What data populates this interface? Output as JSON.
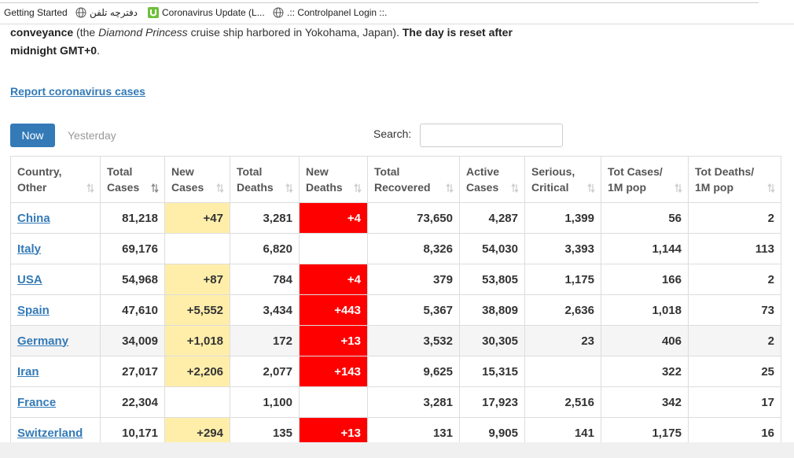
{
  "bookmarks": [
    "Getting Started",
    "دفترچه تلفن",
    "Coronavirus Update (L...",
    ".:: Controlpanel Login ::."
  ],
  "paragraph": [
    "conveyance",
    " (the ",
    "Diamond Princess",
    " cruise ship harbored in Yokohama, Japan). ",
    "The day is reset after midnight GMT+0",
    "."
  ],
  "report_link": "Report coronavirus cases",
  "tabs": [
    "Now",
    "Yesterday"
  ],
  "search_label": "Search:",
  "table": {
    "headers": [
      [
        "Country,",
        "Other"
      ],
      [
        "Total",
        "Cases"
      ],
      [
        "New",
        "Cases"
      ],
      [
        "Total",
        "Deaths"
      ],
      [
        "New",
        "Deaths"
      ],
      [
        "Total",
        "Recovered"
      ],
      [
        "Active",
        "Cases"
      ],
      [
        "Serious,",
        "Critical"
      ],
      [
        "Tot Cases/",
        "1M pop"
      ],
      [
        "Tot Deaths/",
        "1M pop"
      ]
    ],
    "rows": [
      [
        "China",
        "81,218",
        "+47",
        "3,281",
        "+4",
        "73,650",
        "4,287",
        "1,399",
        "56",
        "2"
      ],
      [
        "Italy",
        "69,176",
        null,
        "6,820",
        null,
        "8,326",
        "54,030",
        "3,393",
        "1,144",
        "113"
      ],
      [
        "USA",
        "54,968",
        "+87",
        "784",
        "+4",
        "379",
        "53,805",
        "1,175",
        "166",
        "2"
      ],
      [
        "Spain",
        "47,610",
        "+5,552",
        "3,434",
        "+443",
        "5,367",
        "38,809",
        "2,636",
        "1,018",
        "73"
      ],
      [
        "Germany",
        "34,009",
        "+1,018",
        "172",
        "+13",
        "3,532",
        "30,305",
        "23",
        "406",
        "2"
      ],
      [
        "Iran",
        "27,017",
        "+2,206",
        "2,077",
        "+143",
        "9,625",
        "15,315",
        null,
        "322",
        "25"
      ],
      [
        "France",
        "22,304",
        null,
        "1,100",
        null,
        "3,281",
        "17,923",
        "2,516",
        "342",
        "17"
      ],
      [
        "Switzerland",
        "10,171",
        "+294",
        "135",
        "+13",
        "131",
        "9,905",
        "141",
        "1,175",
        "16"
      ]
    ]
  }
}
